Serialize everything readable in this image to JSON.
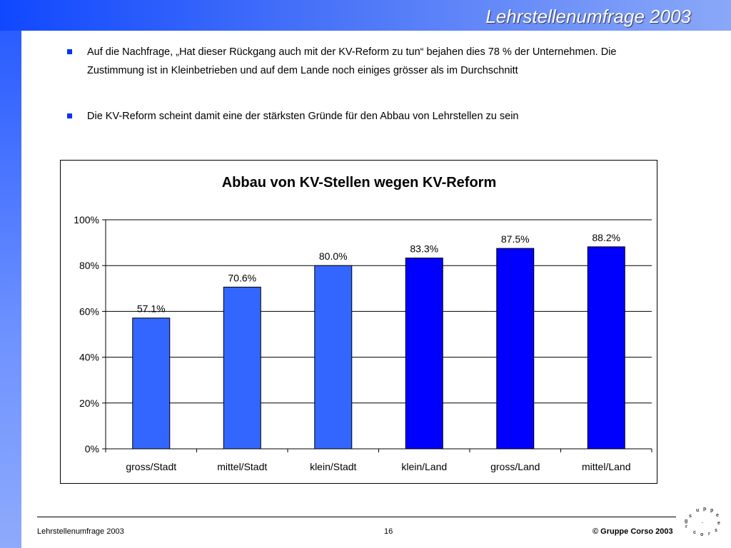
{
  "header": {
    "title": "Lehrstellenumfrage 2003"
  },
  "bullets": [
    "Auf die Nachfrage, „Hat dieser Rückgang auch mit der KV-Reform zu tun“ bejahen dies 78 % der Unternehmen. Die Zustimmung ist in Kleinbetrieben und auf dem Lande noch einiges grösser als im Durchschnitt",
    "Die KV-Reform scheint damit eine der stärksten Gründe für den Abbau von Lehrstellen zu sein"
  ],
  "chart_data": {
    "type": "bar",
    "title": "Abbau von KV-Stellen wegen KV-Reform",
    "categories": [
      "gross/Stadt",
      "mittel/Stadt",
      "klein/Stadt",
      "klein/Land",
      "gross/Land",
      "mittel/Land"
    ],
    "values": [
      57.1,
      70.6,
      80.0,
      83.3,
      87.5,
      88.2
    ],
    "data_labels": [
      "57.1%",
      "70.6%",
      "80.0%",
      "83.3%",
      "87.5%",
      "88.2%"
    ],
    "colors": [
      "#3366ff",
      "#3366ff",
      "#3366ff",
      "#0000ff",
      "#0000ff",
      "#0000ff"
    ],
    "yticks": [
      "0%",
      "20%",
      "40%",
      "60%",
      "80%",
      "100%"
    ],
    "ylim": [
      0,
      100
    ],
    "grid": true,
    "xlabel": "",
    "ylabel": ""
  },
  "footer": {
    "left": "Lehrstellenumfrage 2003",
    "page": "16",
    "copyright": "© Gruppe Corso 2003"
  }
}
